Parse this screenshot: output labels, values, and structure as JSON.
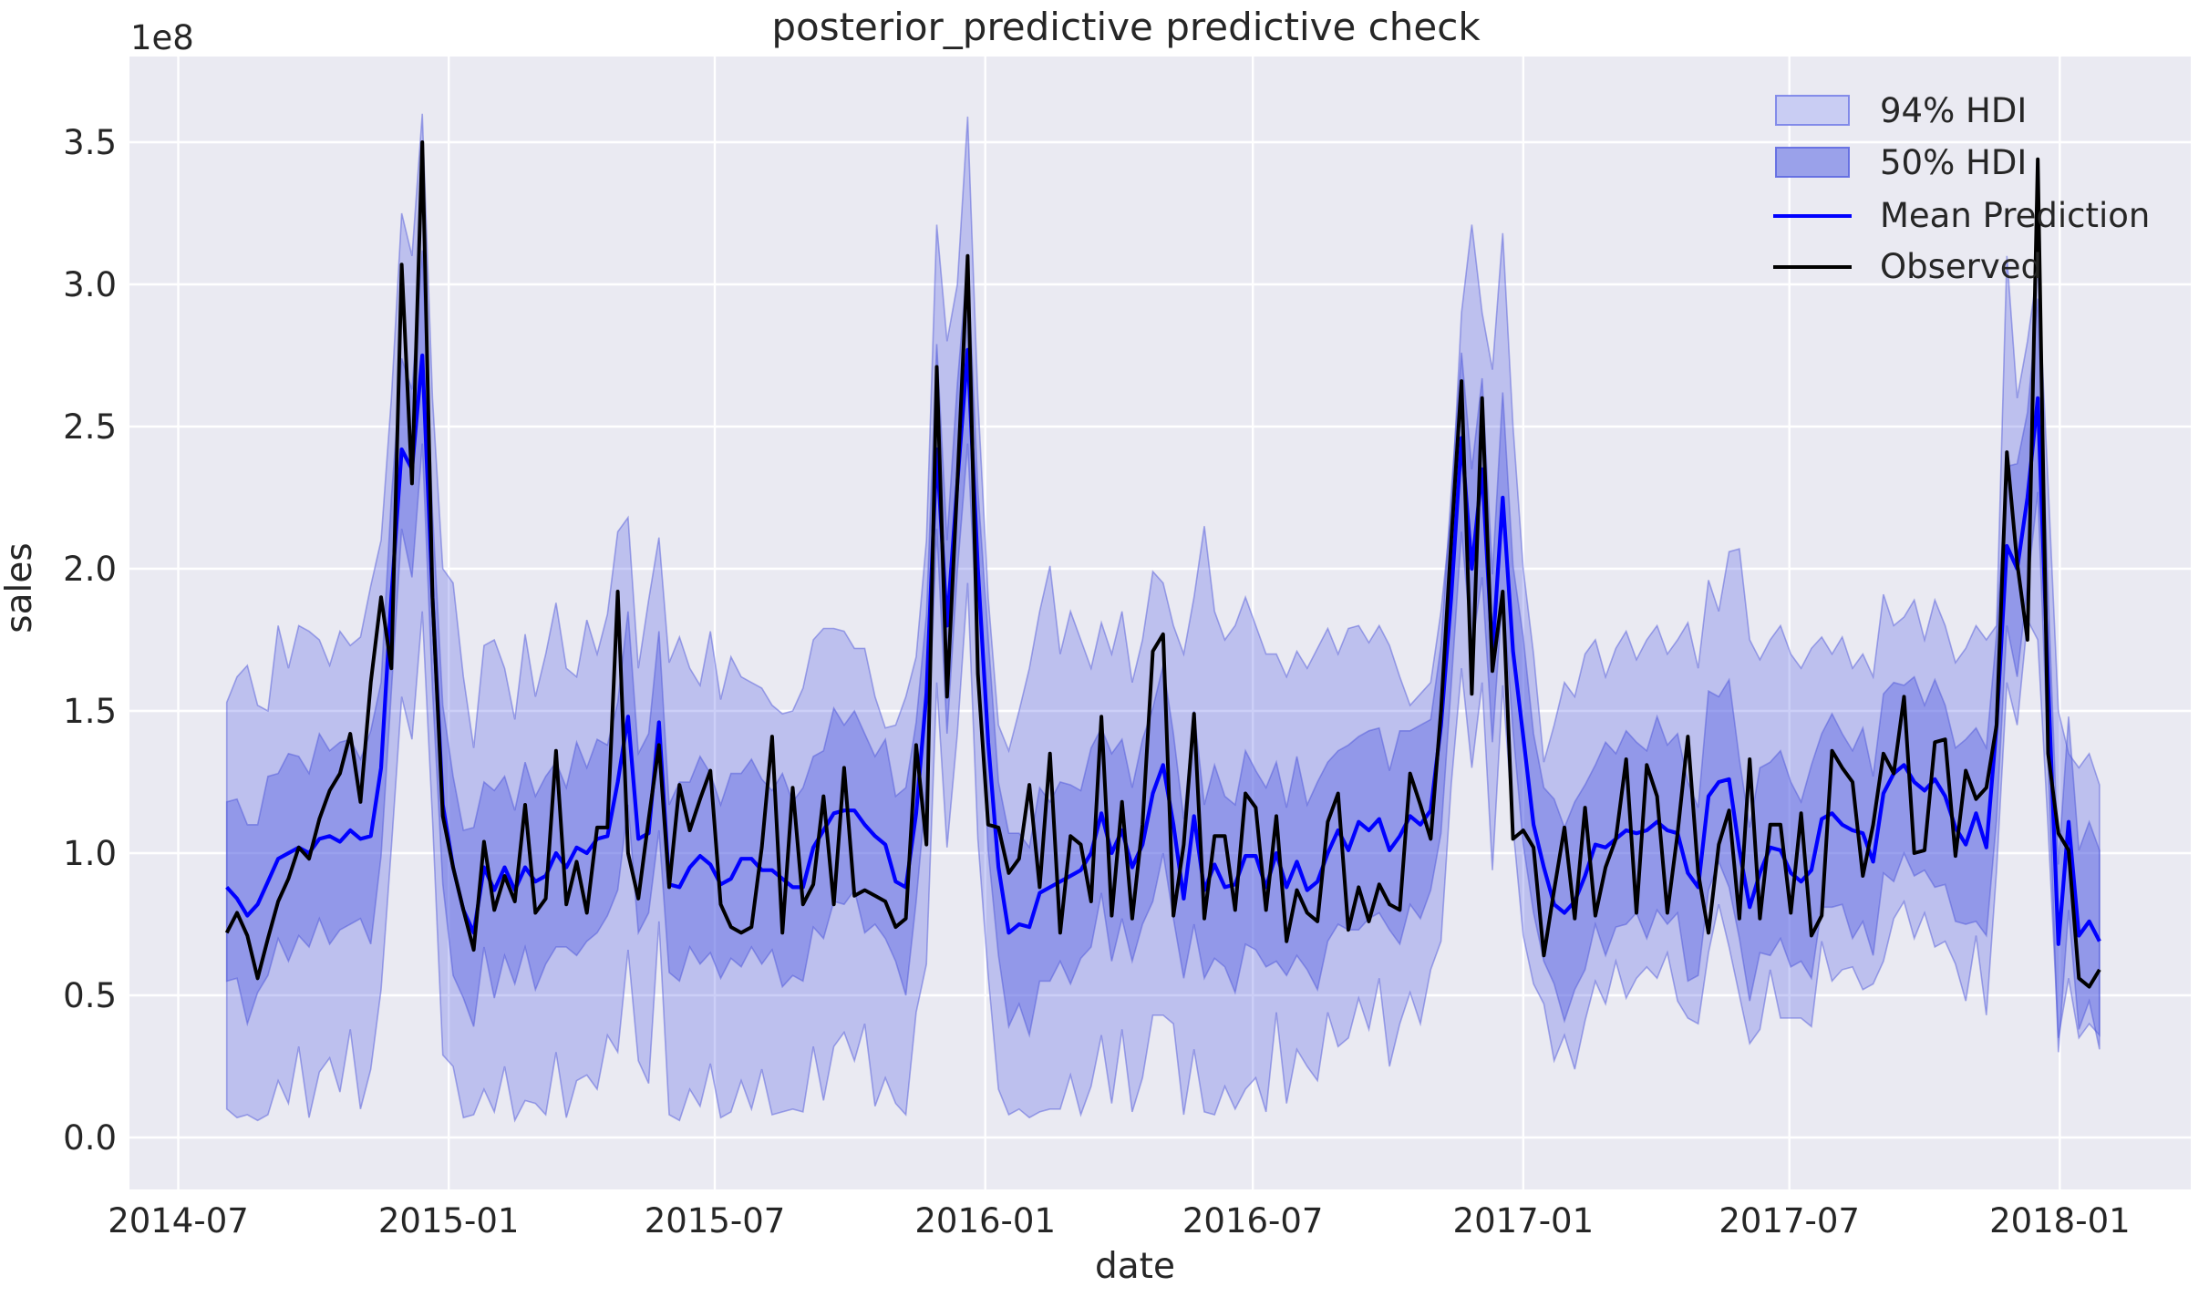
{
  "figure": {
    "title": "posterior_predictive predictive check",
    "xlabel": "date",
    "ylabel": "sales",
    "y_offset_label": "1e8"
  },
  "legend": {
    "items": [
      {
        "label": "94% HDI",
        "type": "patch"
      },
      {
        "label": "50% HDI",
        "type": "patch"
      },
      {
        "label": "Mean Prediction",
        "type": "line"
      },
      {
        "label": "Observed",
        "type": "line"
      }
    ]
  },
  "colors": {
    "figure_bg": "#ffffff",
    "plot_bg": "#eaeaf2",
    "grid": "#ffffff",
    "hdi94_fill": "rgba(86,97,227,0.30)",
    "hdi50_fill": "rgba(86,97,227,0.42)",
    "band_edge": "rgba(70,80,215,0.45)",
    "mean_line": "#0000ff",
    "observed_line": "#000000",
    "legend94_fill": "#c9cdf3",
    "legend50_fill": "#9aa1ea",
    "text": "#262626"
  },
  "chart_data": {
    "type": "line",
    "title": "posterior_predictive predictive check",
    "xlabel": "date",
    "ylabel": "sales",
    "y_unit_multiplier_label": "1e8",
    "grid": true,
    "legend_position": "upper right",
    "x_start_date": "2014-08-03",
    "x_step_days": 7,
    "n_points": 183,
    "x_tick_labels": [
      "2014-07",
      "2015-01",
      "2015-07",
      "2016-01",
      "2016-07",
      "2017-01",
      "2017-07",
      "2018-01"
    ],
    "x_tick_days_from_2014_07_01": [
      0,
      184,
      365,
      549,
      731,
      915,
      1096,
      1280
    ],
    "y_ticks": [
      0.0,
      0.5,
      1.0,
      1.5,
      2.0,
      2.5,
      3.0,
      3.5
    ],
    "y_tick_labels": [
      "0.0",
      "0.5",
      "1.0",
      "1.5",
      "2.0",
      "2.5",
      "3.0",
      "3.5"
    ],
    "ylim": [
      -0.18,
      3.8
    ],
    "series": [
      {
        "name": "Observed",
        "values": [
          0.72,
          0.79,
          0.71,
          0.56,
          0.7,
          0.83,
          0.91,
          1.02,
          0.98,
          1.12,
          1.22,
          1.28,
          1.42,
          1.18,
          1.6,
          1.9,
          1.65,
          3.07,
          2.3,
          3.5,
          1.9,
          1.13,
          0.95,
          0.8,
          0.66,
          1.04,
          0.8,
          0.92,
          0.83,
          1.17,
          0.79,
          0.84,
          1.36,
          0.82,
          0.97,
          0.79,
          1.09,
          1.09,
          1.92,
          1.0,
          0.84,
          1.12,
          1.38,
          0.88,
          1.24,
          1.08,
          1.19,
          1.29,
          0.82,
          0.74,
          0.72,
          0.74,
          1.02,
          1.41,
          0.72,
          1.23,
          0.82,
          0.89,
          1.2,
          0.82,
          1.3,
          0.85,
          0.87,
          0.85,
          0.83,
          0.74,
          0.77,
          1.38,
          1.03,
          2.71,
          1.55,
          2.3,
          3.1,
          1.63,
          1.1,
          1.09,
          0.93,
          0.98,
          1.24,
          0.88,
          1.35,
          0.72,
          1.06,
          1.03,
          0.83,
          1.48,
          0.78,
          1.18,
          0.77,
          1.1,
          1.71,
          1.77,
          0.78,
          1.03,
          1.49,
          0.77,
          1.06,
          1.06,
          0.8,
          1.21,
          1.16,
          0.8,
          1.13,
          0.69,
          0.87,
          0.79,
          0.76,
          1.11,
          1.21,
          0.73,
          0.88,
          0.76,
          0.89,
          0.82,
          0.8,
          1.28,
          1.17,
          1.05,
          1.5,
          2.1,
          2.66,
          1.56,
          2.6,
          1.64,
          1.92,
          1.05,
          1.08,
          1.02,
          0.64,
          0.87,
          1.09,
          0.77,
          1.16,
          0.78,
          0.95,
          1.05,
          1.33,
          0.79,
          1.31,
          1.2,
          0.79,
          1.07,
          1.41,
          0.93,
          0.72,
          1.03,
          1.15,
          0.77,
          1.33,
          0.77,
          1.1,
          1.1,
          0.79,
          1.14,
          0.71,
          0.78,
          1.36,
          1.3,
          1.25,
          0.92,
          1.1,
          1.35,
          1.28,
          1.55,
          1.0,
          1.01,
          1.39,
          1.4,
          0.99,
          1.29,
          1.19,
          1.23,
          1.45,
          2.41,
          2.02,
          1.75,
          3.44,
          1.35,
          1.07,
          1.01,
          0.56,
          0.53,
          0.59
        ]
      },
      {
        "name": "Mean Prediction",
        "values": [
          0.88,
          0.84,
          0.78,
          0.82,
          0.9,
          0.98,
          1.0,
          1.02,
          1.0,
          1.05,
          1.06,
          1.04,
          1.08,
          1.05,
          1.06,
          1.3,
          1.9,
          2.42,
          2.35,
          2.75,
          1.9,
          1.17,
          0.95,
          0.8,
          0.72,
          0.95,
          0.87,
          0.95,
          0.87,
          0.95,
          0.9,
          0.92,
          1.0,
          0.95,
          1.02,
          1.0,
          1.05,
          1.06,
          1.25,
          1.48,
          1.05,
          1.07,
          1.46,
          0.89,
          0.88,
          0.95,
          0.99,
          0.96,
          0.89,
          0.91,
          0.98,
          0.98,
          0.94,
          0.94,
          0.91,
          0.88,
          0.88,
          1.02,
          1.08,
          1.14,
          1.15,
          1.15,
          1.1,
          1.06,
          1.03,
          0.9,
          0.88,
          1.14,
          1.56,
          2.42,
          1.8,
          2.3,
          2.77,
          2.0,
          1.39,
          0.95,
          0.72,
          0.75,
          0.74,
          0.86,
          0.88,
          0.9,
          0.92,
          0.94,
          1.0,
          1.14,
          1.0,
          1.08,
          0.95,
          1.03,
          1.21,
          1.31,
          1.1,
          0.84,
          1.13,
          0.87,
          0.96,
          0.88,
          0.89,
          0.99,
          0.99,
          0.88,
          1.0,
          0.88,
          0.97,
          0.87,
          0.9,
          1.0,
          1.08,
          1.01,
          1.11,
          1.08,
          1.12,
          1.01,
          1.06,
          1.13,
          1.1,
          1.15,
          1.45,
          1.9,
          2.46,
          2.0,
          2.35,
          1.7,
          2.25,
          1.71,
          1.41,
          1.1,
          0.95,
          0.82,
          0.79,
          0.83,
          0.92,
          1.03,
          1.02,
          1.05,
          1.08,
          1.07,
          1.08,
          1.11,
          1.08,
          1.07,
          0.93,
          0.88,
          1.2,
          1.25,
          1.26,
          1.01,
          0.81,
          0.93,
          1.02,
          1.01,
          0.93,
          0.9,
          0.94,
          1.12,
          1.14,
          1.1,
          1.08,
          1.07,
          0.97,
          1.21,
          1.28,
          1.31,
          1.25,
          1.22,
          1.26,
          1.2,
          1.09,
          1.03,
          1.14,
          1.02,
          1.45,
          2.08,
          2.0,
          2.25,
          2.6,
          1.6,
          0.68,
          1.11,
          0.71,
          0.76,
          0.69
        ]
      },
      {
        "name": "94% HDI",
        "upper": [
          1.53,
          1.62,
          1.66,
          1.52,
          1.5,
          1.8,
          1.65,
          1.8,
          1.78,
          1.75,
          1.66,
          1.78,
          1.73,
          1.76,
          1.94,
          2.1,
          2.6,
          3.25,
          3.1,
          3.6,
          2.6,
          2.0,
          1.95,
          1.62,
          1.37,
          1.73,
          1.75,
          1.65,
          1.47,
          1.77,
          1.55,
          1.7,
          1.88,
          1.65,
          1.62,
          1.82,
          1.7,
          1.84,
          2.13,
          2.18,
          1.65,
          1.89,
          2.11,
          1.67,
          1.76,
          1.65,
          1.59,
          1.78,
          1.54,
          1.69,
          1.62,
          1.6,
          1.58,
          1.52,
          1.49,
          1.5,
          1.58,
          1.75,
          1.79,
          1.79,
          1.78,
          1.72,
          1.72,
          1.55,
          1.44,
          1.45,
          1.55,
          1.69,
          2.1,
          3.21,
          2.8,
          3.0,
          3.59,
          2.6,
          1.9,
          1.45,
          1.36,
          1.5,
          1.65,
          1.85,
          2.01,
          1.7,
          1.85,
          1.75,
          1.65,
          1.81,
          1.7,
          1.85,
          1.6,
          1.75,
          1.99,
          1.95,
          1.8,
          1.7,
          1.9,
          2.15,
          1.85,
          1.75,
          1.8,
          1.9,
          1.8,
          1.7,
          1.7,
          1.62,
          1.71,
          1.65,
          1.72,
          1.79,
          1.7,
          1.79,
          1.8,
          1.74,
          1.8,
          1.73,
          1.62,
          1.52,
          1.56,
          1.6,
          1.85,
          2.2,
          2.9,
          3.21,
          2.9,
          2.7,
          3.18,
          2.5,
          2.0,
          1.7,
          1.32,
          1.45,
          1.6,
          1.55,
          1.7,
          1.75,
          1.62,
          1.72,
          1.78,
          1.68,
          1.75,
          1.8,
          1.7,
          1.75,
          1.81,
          1.65,
          1.96,
          1.85,
          2.06,
          2.07,
          1.75,
          1.68,
          1.75,
          1.8,
          1.7,
          1.65,
          1.72,
          1.76,
          1.7,
          1.76,
          1.65,
          1.7,
          1.62,
          1.91,
          1.8,
          1.83,
          1.89,
          1.75,
          1.89,
          1.8,
          1.67,
          1.72,
          1.8,
          1.75,
          1.8,
          3.1,
          2.6,
          2.8,
          3.06,
          2.3,
          1.5,
          1.35,
          1.3,
          1.35,
          1.24
        ],
        "lower": [
          0.1,
          0.07,
          0.08,
          0.06,
          0.08,
          0.2,
          0.12,
          0.32,
          0.07,
          0.23,
          0.28,
          0.16,
          0.38,
          0.1,
          0.24,
          0.52,
          1.02,
          1.55,
          1.4,
          1.85,
          1.12,
          0.29,
          0.25,
          0.07,
          0.08,
          0.17,
          0.09,
          0.25,
          0.06,
          0.13,
          0.12,
          0.08,
          0.3,
          0.07,
          0.2,
          0.22,
          0.17,
          0.36,
          0.3,
          0.66,
          0.27,
          0.19,
          0.76,
          0.08,
          0.06,
          0.17,
          0.11,
          0.26,
          0.07,
          0.09,
          0.2,
          0.1,
          0.24,
          0.08,
          0.09,
          0.1,
          0.09,
          0.32,
          0.13,
          0.32,
          0.37,
          0.27,
          0.4,
          0.11,
          0.21,
          0.12,
          0.08,
          0.44,
          0.61,
          1.6,
          1.02,
          1.42,
          1.95,
          1.05,
          0.57,
          0.17,
          0.08,
          0.1,
          0.07,
          0.09,
          0.1,
          0.1,
          0.22,
          0.08,
          0.18,
          0.36,
          0.12,
          0.38,
          0.09,
          0.21,
          0.43,
          0.43,
          0.4,
          0.08,
          0.31,
          0.09,
          0.08,
          0.18,
          0.1,
          0.17,
          0.21,
          0.09,
          0.44,
          0.12,
          0.31,
          0.25,
          0.2,
          0.44,
          0.32,
          0.35,
          0.49,
          0.38,
          0.56,
          0.25,
          0.4,
          0.51,
          0.4,
          0.59,
          0.69,
          1.24,
          1.65,
          1.3,
          1.6,
          0.94,
          1.59,
          1.09,
          0.71,
          0.54,
          0.47,
          0.27,
          0.36,
          0.24,
          0.41,
          0.55,
          0.47,
          0.62,
          0.49,
          0.56,
          0.6,
          0.56,
          0.65,
          0.48,
          0.42,
          0.4,
          0.65,
          0.82,
          0.67,
          0.5,
          0.33,
          0.38,
          0.59,
          0.42,
          0.42,
          0.42,
          0.39,
          0.69,
          0.55,
          0.59,
          0.6,
          0.52,
          0.54,
          0.62,
          0.77,
          0.83,
          0.7,
          0.79,
          0.67,
          0.69,
          0.61,
          0.48,
          0.71,
          0.43,
          0.94,
          1.6,
          1.45,
          1.82,
          1.75,
          1.09,
          0.35,
          0.56,
          0.35,
          0.4,
          0.36
        ]
      },
      {
        "name": "50% HDI",
        "upper": [
          1.18,
          1.19,
          1.1,
          1.1,
          1.27,
          1.28,
          1.35,
          1.34,
          1.28,
          1.42,
          1.36,
          1.39,
          1.4,
          1.33,
          1.43,
          1.6,
          2.25,
          2.74,
          2.63,
          3.12,
          2.2,
          1.52,
          1.27,
          1.08,
          1.09,
          1.25,
          1.22,
          1.27,
          1.15,
          1.32,
          1.2,
          1.27,
          1.32,
          1.23,
          1.39,
          1.3,
          1.4,
          1.38,
          1.53,
          1.85,
          1.35,
          1.42,
          1.78,
          1.17,
          1.25,
          1.25,
          1.34,
          1.28,
          1.17,
          1.28,
          1.28,
          1.33,
          1.26,
          1.22,
          1.28,
          1.18,
          1.23,
          1.34,
          1.36,
          1.51,
          1.45,
          1.5,
          1.42,
          1.34,
          1.4,
          1.2,
          1.23,
          1.46,
          1.84,
          2.79,
          2.1,
          2.65,
          3.09,
          2.28,
          1.76,
          1.25,
          1.07,
          1.07,
          1.02,
          1.23,
          1.18,
          1.25,
          1.24,
          1.22,
          1.37,
          1.44,
          1.35,
          1.4,
          1.23,
          1.4,
          1.51,
          1.66,
          1.42,
          1.12,
          1.5,
          1.17,
          1.31,
          1.2,
          1.17,
          1.36,
          1.29,
          1.23,
          1.32,
          1.16,
          1.34,
          1.17,
          1.25,
          1.32,
          1.36,
          1.38,
          1.41,
          1.43,
          1.44,
          1.29,
          1.43,
          1.43,
          1.45,
          1.47,
          1.73,
          2.27,
          2.76,
          2.35,
          2.67,
          1.98,
          2.62,
          2.01,
          1.76,
          1.42,
          1.23,
          1.19,
          1.09,
          1.18,
          1.24,
          1.31,
          1.39,
          1.35,
          1.43,
          1.39,
          1.36,
          1.48,
          1.38,
          1.42,
          1.25,
          1.16,
          1.57,
          1.55,
          1.61,
          1.33,
          1.09,
          1.3,
          1.32,
          1.36,
          1.25,
          1.18,
          1.31,
          1.42,
          1.49,
          1.42,
          1.36,
          1.44,
          1.27,
          1.56,
          1.6,
          1.59,
          1.62,
          1.52,
          1.61,
          1.52,
          1.37,
          1.4,
          1.44,
          1.37,
          1.77,
          2.36,
          2.37,
          2.55,
          2.95,
          1.92,
          0.96,
          1.48,
          1.01,
          1.11,
          1.01
        ],
        "lower": [
          0.55,
          0.56,
          0.4,
          0.51,
          0.57,
          0.7,
          0.62,
          0.71,
          0.67,
          0.77,
          0.68,
          0.73,
          0.75,
          0.77,
          0.68,
          0.99,
          1.57,
          2.14,
          1.97,
          2.44,
          1.57,
          0.89,
          0.57,
          0.49,
          0.39,
          0.67,
          0.49,
          0.64,
          0.54,
          0.67,
          0.52,
          0.61,
          0.67,
          0.67,
          0.64,
          0.69,
          0.72,
          0.78,
          0.87,
          1.17,
          0.72,
          0.79,
          1.08,
          0.58,
          0.55,
          0.67,
          0.61,
          0.65,
          0.56,
          0.63,
          0.6,
          0.67,
          0.61,
          0.66,
          0.53,
          0.57,
          0.55,
          0.74,
          0.7,
          0.83,
          0.82,
          0.87,
          0.72,
          0.75,
          0.7,
          0.62,
          0.5,
          0.83,
          1.23,
          2.14,
          1.42,
          1.99,
          2.44,
          1.72,
          1.01,
          0.64,
          0.39,
          0.47,
          0.36,
          0.55,
          0.55,
          0.62,
          0.54,
          0.63,
          0.67,
          0.86,
          0.62,
          0.77,
          0.62,
          0.75,
          0.83,
          1.0,
          0.77,
          0.56,
          0.75,
          0.56,
          0.63,
          0.6,
          0.51,
          0.68,
          0.66,
          0.6,
          0.62,
          0.57,
          0.64,
          0.59,
          0.52,
          0.69,
          0.75,
          0.73,
          0.73,
          0.77,
          0.79,
          0.73,
          0.68,
          0.82,
          0.77,
          0.87,
          1.07,
          1.59,
          2.13,
          1.72,
          1.97,
          1.39,
          1.92,
          1.43,
          1.03,
          0.79,
          0.62,
          0.54,
          0.41,
          0.52,
          0.59,
          0.75,
          0.64,
          0.74,
          0.75,
          0.79,
          0.7,
          0.8,
          0.75,
          0.79,
          0.55,
          0.57,
          0.87,
          0.97,
          0.88,
          0.7,
          0.48,
          0.65,
          0.64,
          0.7,
          0.6,
          0.62,
          0.56,
          0.81,
          0.81,
          0.82,
          0.7,
          0.76,
          0.64,
          0.93,
          0.9,
          1.0,
          0.92,
          0.94,
          0.88,
          0.89,
          0.76,
          0.75,
          0.76,
          0.71,
          1.12,
          1.8,
          1.62,
          1.94,
          2.27,
          1.32,
          0.3,
          0.8,
          0.38,
          0.48,
          0.31
        ]
      }
    ]
  }
}
